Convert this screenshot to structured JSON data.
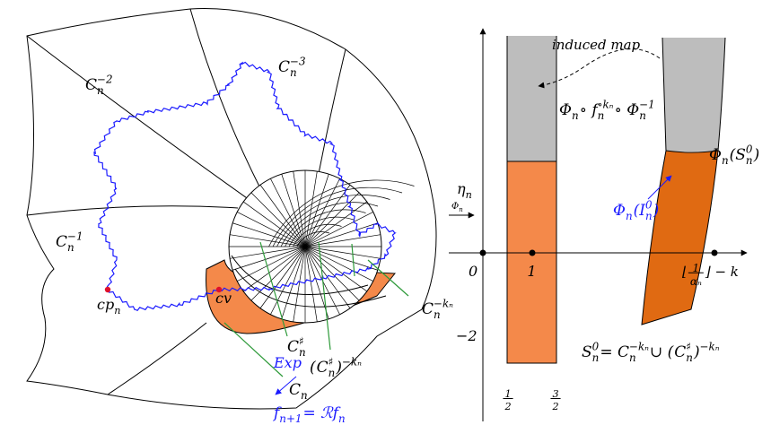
{
  "left_labels": [
    [
      {
        "text": "C",
        "sub": "n",
        "sup": "−2"
      }
    ],
    [
      {
        "text": "C",
        "sub": "n",
        "sup": "−3"
      }
    ],
    [
      {
        "text": "C",
        "sub": "n",
        "sup": "−1"
      }
    ],
    [
      {
        "text": "cp",
        "sub": "n"
      }
    ],
    [
      {
        "text": "cv"
      }
    ],
    [
      {
        "text": "C",
        "sub": "n",
        "sup": "♯"
      }
    ],
    [
      {
        "text": "("
      },
      {
        "text": "C",
        "sub": "n",
        "sup": "♯"
      },
      {
        "text": ")",
        "sup": "−kₙ"
      }
    ],
    [
      {
        "text": "C",
        "sub": "n",
        "sup": "−kₙ"
      }
    ],
    [
      {
        "text": "C",
        "sub": "n"
      }
    ],
    [
      {
        "text": "Exp"
      }
    ],
    [
      {
        "text": "f",
        "sub": "n+1"
      },
      {
        "text": " = ℛf",
        "sub": "n"
      }
    ]
  ],
  "right_labels": [
    [
      {
        "text": "induced map"
      }
    ],
    [
      {
        "text": "Φ",
        "sub": "n"
      },
      {
        "text": " ∘ f",
        "sub": "n",
        "sup": "∘kₙ"
      },
      {
        "text": " ∘ Φ",
        "sub": "n",
        "sup": "−1"
      }
    ],
    [
      {
        "text": "Φ",
        "sub": "n"
      },
      {
        "text": "(S",
        "sub": "n",
        "sup": "0"
      },
      {
        "text": ")"
      }
    ],
    [
      {
        "text": "Φ",
        "sub": "n"
      },
      {
        "text": "(I",
        "sub": "n",
        "sup": "0"
      },
      {
        "text": ")"
      }
    ],
    [
      {
        "text": "η",
        "sub": "n"
      }
    ],
    [
      {
        "text": "Φ",
        "sub": "n"
      }
    ],
    [
      {
        "text": "0"
      }
    ],
    [
      {
        "text": "1"
      }
    ],
    [
      {
        "text": "⌊"
      },
      {
        "num": "1",
        "den": "αₙ"
      },
      {
        "text": "⌋ − k"
      }
    ],
    [
      {
        "text": "−2"
      }
    ],
    [
      {
        "num": "1",
        "den": "2"
      }
    ],
    [
      {
        "num": "3",
        "den": "2"
      }
    ],
    [
      {
        "text": "S",
        "sub": "n",
        "sup": "0"
      },
      {
        "text": " = C",
        "sub": "n",
        "sup": "−kₙ"
      },
      {
        "text": " ∪ ("
      },
      {
        "text": "C",
        "sub": "n",
        "sup": "♯"
      },
      {
        "text": ")",
        "sup": "−kₙ"
      }
    ]
  ]
}
